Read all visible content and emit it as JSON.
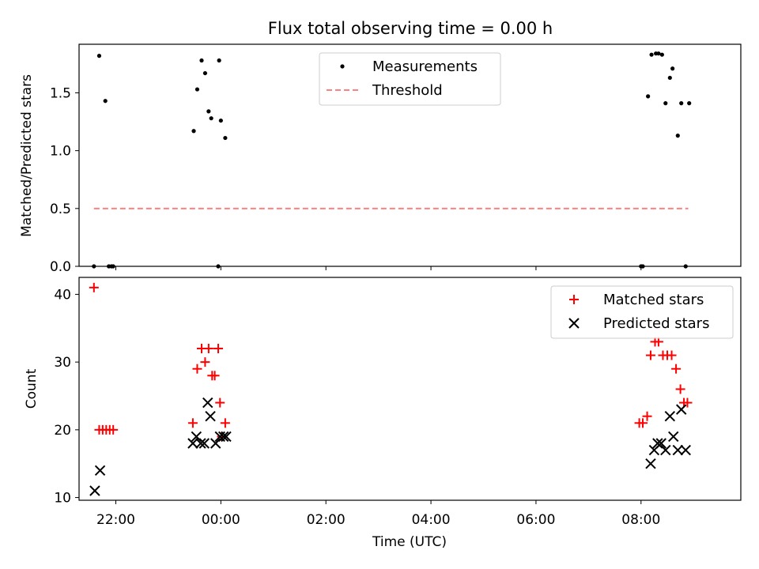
{
  "chart_data": [
    {
      "type": "scatter",
      "title": "Flux total observing time = 0.00 h",
      "xlabel": "",
      "ylabel": "Matched/Predicted stars",
      "xlim": [
        "21:18",
        "09:54"
      ],
      "ylim": [
        0,
        1.92
      ],
      "yticks": [
        0.0,
        0.5,
        1.0,
        1.5
      ],
      "ytick_labels": [
        "0.0",
        "0.5",
        "1.0",
        "1.5"
      ],
      "legend": {
        "position": "top-center"
      },
      "series": [
        {
          "name": "Measurements",
          "marker": "dot",
          "color": "#000000",
          "x": [
            "21:35",
            "21:41",
            "21:48",
            "21:52",
            "21:55",
            "21:57",
            "23:29",
            "23:33",
            "23:38",
            "23:42",
            "23:46",
            "23:49",
            "23:57",
            "23:58",
            "23:60",
            "00:05",
            "08:00",
            "08:02",
            "08:08",
            "08:12",
            "08:17",
            "08:20",
            "08:24",
            "08:28",
            "08:33",
            "08:36",
            "08:42",
            "08:46",
            "08:51",
            "08:55"
          ],
          "y": [
            0.0,
            1.82,
            1.43,
            0.0,
            0.0,
            0.0,
            1.17,
            1.53,
            1.78,
            1.67,
            1.34,
            1.28,
            0.0,
            1.78,
            1.26,
            1.11,
            0.0,
            0.0,
            1.47,
            1.83,
            1.84,
            1.84,
            1.83,
            1.41,
            1.63,
            1.71,
            1.13,
            1.41,
            0.0,
            1.41
          ]
        },
        {
          "name": "Threshold",
          "style": "dashed",
          "color": "#ff8080",
          "x": [
            "21:35",
            "08:54"
          ],
          "y": [
            0.5,
            0.5
          ]
        }
      ]
    },
    {
      "type": "scatter",
      "title": "",
      "xlabel": "Time (UTC)",
      "ylabel": "Count",
      "xlim": [
        "21:18",
        "09:54"
      ],
      "ylim": [
        9.6,
        42.5
      ],
      "yticks": [
        10,
        20,
        30,
        40
      ],
      "ytick_labels": [
        "10",
        "20",
        "30",
        "40"
      ],
      "xticks": [
        "22:00",
        "00:00",
        "02:00",
        "04:00",
        "06:00",
        "08:00"
      ],
      "legend": {
        "position": "top-right"
      },
      "series": [
        {
          "name": "Matched stars",
          "marker": "plus",
          "color": "#ff0000",
          "x": [
            "21:35",
            "21:41",
            "21:45",
            "21:49",
            "21:53",
            "21:57",
            "23:28",
            "23:33",
            "23:38",
            "23:42",
            "23:46",
            "23:50",
            "23:53",
            "23:57",
            "23:59",
            "00:01",
            "00:05",
            "07:58",
            "08:02",
            "08:07",
            "08:11",
            "08:16",
            "08:20",
            "08:25",
            "08:30",
            "08:35",
            "08:40",
            "08:45",
            "08:49",
            "08:53"
          ],
          "y": [
            41,
            20,
            20,
            20,
            20,
            20,
            21,
            29,
            32,
            30,
            32,
            28,
            28,
            32,
            24,
            19,
            21,
            21,
            21,
            22,
            31,
            33,
            33,
            31,
            31,
            31,
            29,
            26,
            24,
            24
          ]
        },
        {
          "name": "Predicted stars",
          "marker": "x",
          "color": "#000000",
          "x": [
            "21:36",
            "21:42",
            "23:28",
            "23:32",
            "23:37",
            "23:41",
            "23:45",
            "23:48",
            "23:54",
            "23:59",
            "00:03",
            "00:06",
            "08:11",
            "08:15",
            "08:19",
            "08:23",
            "08:28",
            "08:33",
            "08:37",
            "08:42",
            "08:46",
            "08:51"
          ],
          "y": [
            11,
            14,
            18,
            19,
            18,
            18,
            24,
            22,
            18,
            19,
            19,
            19,
            15,
            17,
            18,
            18,
            17,
            22,
            19,
            17,
            23,
            17
          ]
        }
      ]
    }
  ]
}
